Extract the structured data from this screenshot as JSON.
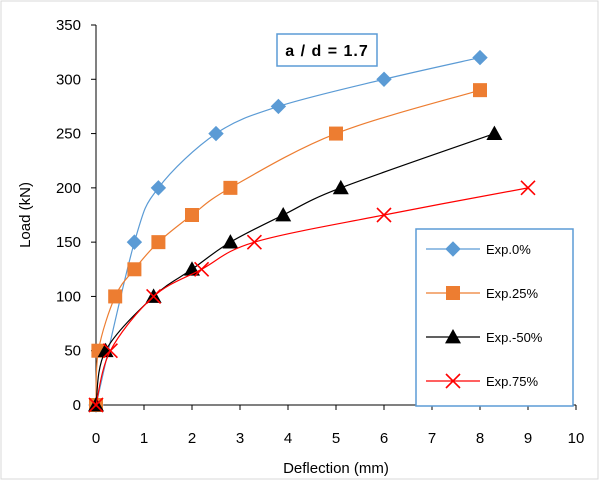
{
  "chart_data": {
    "type": "line",
    "xlabel": "Deflection  (mm)",
    "ylabel": "Load  (kN)",
    "xlim": [
      0,
      10
    ],
    "ylim": [
      0,
      350
    ],
    "xticks": [
      0,
      1,
      2,
      3,
      4,
      5,
      6,
      7,
      8,
      9,
      10
    ],
    "yticks": [
      0,
      50,
      100,
      150,
      200,
      250,
      300,
      350
    ],
    "grid": false,
    "legend_position": "bottom-right",
    "annotation": "a / d = 1.7",
    "series": [
      {
        "name": "Exp.0%",
        "color": "#5B9BD5",
        "marker": "diamond",
        "x": [
          0,
          0.8,
          1.3,
          2.5,
          3.8,
          6.0,
          8.0
        ],
        "y": [
          0,
          150,
          200,
          250,
          275,
          300,
          320
        ]
      },
      {
        "name": "Exp.25%",
        "color": "#ED7D31",
        "marker": "square",
        "x": [
          0,
          0.05,
          0.4,
          0.8,
          1.3,
          2.0,
          2.8,
          5.0,
          8.0
        ],
        "y": [
          0,
          50,
          100,
          125,
          150,
          175,
          200,
          250,
          290
        ]
      },
      {
        "name": "Exp.-50%",
        "color": "#000000",
        "marker": "triangle",
        "x": [
          0,
          0.2,
          1.2,
          2.0,
          2.8,
          3.9,
          5.1,
          8.3
        ],
        "y": [
          0,
          50,
          100,
          125,
          150,
          175,
          200,
          250
        ]
      },
      {
        "name": "Exp.75%",
        "color": "#FF0000",
        "marker": "x",
        "x": [
          0,
          0.3,
          1.2,
          2.2,
          3.3,
          6.0,
          9.0
        ],
        "y": [
          0,
          50,
          100,
          125,
          150,
          175,
          200
        ]
      }
    ]
  }
}
